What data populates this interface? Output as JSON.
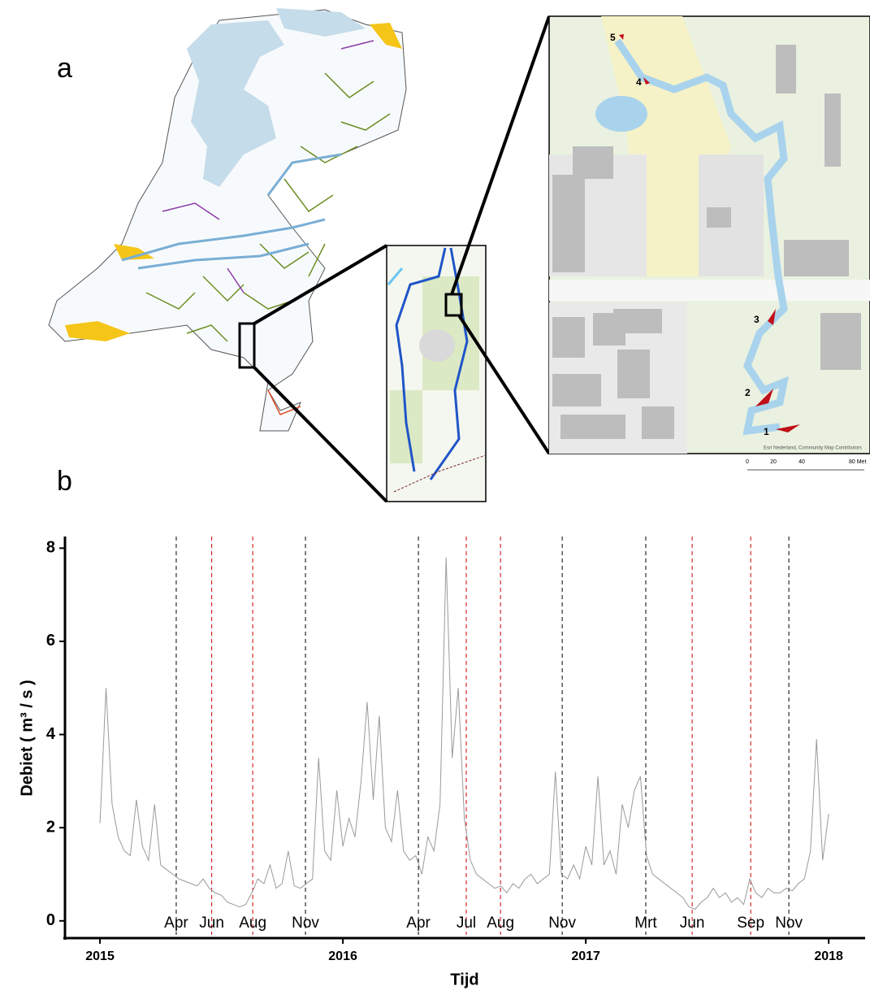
{
  "map": {
    "panel_a": "a",
    "panel_b": "b",
    "sites": [
      "5",
      "4",
      "3",
      "2",
      "1"
    ],
    "scale_labels": [
      "0",
      "20",
      "40",
      "80 Met"
    ],
    "attribution": "Esri Nederland, Community Map Contributors"
  },
  "chart_data": {
    "type": "line",
    "x": [
      2015,
      2015.025,
      2015.05,
      2015.075,
      2015.1,
      2015.125,
      2015.15,
      2015.175,
      2015.2,
      2015.225,
      2015.25,
      2015.275,
      2015.3,
      2015.325,
      2015.35,
      2015.375,
      2015.4,
      2015.425,
      2015.45,
      2015.475,
      2015.5,
      2015.525,
      2015.55,
      2015.575,
      2015.6,
      2015.625,
      2015.65,
      2015.675,
      2015.7,
      2015.725,
      2015.75,
      2015.775,
      2015.8,
      2015.825,
      2015.85,
      2015.875,
      2015.9,
      2015.925,
      2015.95,
      2015.975,
      2016,
      2016.025,
      2016.05,
      2016.075,
      2016.1,
      2016.125,
      2016.15,
      2016.175,
      2016.2,
      2016.225,
      2016.25,
      2016.275,
      2016.3,
      2016.325,
      2016.35,
      2016.375,
      2016.4,
      2016.425,
      2016.45,
      2016.475,
      2016.5,
      2016.525,
      2016.55,
      2016.575,
      2016.6,
      2016.625,
      2016.65,
      2016.675,
      2016.7,
      2016.725,
      2016.75,
      2016.775,
      2016.8,
      2016.825,
      2016.85,
      2016.875,
      2016.9,
      2016.925,
      2016.95,
      2016.975,
      2017,
      2017.025,
      2017.05,
      2017.075,
      2017.1,
      2017.125,
      2017.15,
      2017.175,
      2017.2,
      2017.225,
      2017.25,
      2017.275,
      2017.3,
      2017.325,
      2017.35,
      2017.375,
      2017.4,
      2017.425,
      2017.45,
      2017.475,
      2017.5,
      2017.525,
      2017.55,
      2017.575,
      2017.6,
      2017.625,
      2017.65,
      2017.675,
      2017.7,
      2017.725,
      2017.75,
      2017.775,
      2017.8,
      2017.825,
      2017.85,
      2017.875,
      2017.9,
      2017.925,
      2017.95,
      2017.975,
      2018
    ],
    "values": [
      2.1,
      5.0,
      2.5,
      1.8,
      1.5,
      1.4,
      2.6,
      1.6,
      1.3,
      2.5,
      1.2,
      1.1,
      1.0,
      0.9,
      0.85,
      0.8,
      0.75,
      0.9,
      0.7,
      0.6,
      0.55,
      0.4,
      0.35,
      0.3,
      0.35,
      0.6,
      0.9,
      0.8,
      1.2,
      0.7,
      0.8,
      1.5,
      0.75,
      0.7,
      0.8,
      0.9,
      3.5,
      1.5,
      1.3,
      2.8,
      1.6,
      2.2,
      1.8,
      3.0,
      4.7,
      2.6,
      4.4,
      2.0,
      1.7,
      2.8,
      1.5,
      1.3,
      1.4,
      1.0,
      1.8,
      1.5,
      2.5,
      7.8,
      3.5,
      5.0,
      2.2,
      1.3,
      1.0,
      0.9,
      0.8,
      0.7,
      0.75,
      0.6,
      0.8,
      0.7,
      0.9,
      1.0,
      0.8,
      0.9,
      1.0,
      3.2,
      1.0,
      0.9,
      1.2,
      0.9,
      1.6,
      1.2,
      3.1,
      1.2,
      1.5,
      1.0,
      2.5,
      2.0,
      2.8,
      3.1,
      1.4,
      1.0,
      0.9,
      0.8,
      0.7,
      0.6,
      0.5,
      0.3,
      0.25,
      0.4,
      0.5,
      0.7,
      0.5,
      0.6,
      0.4,
      0.5,
      0.35,
      0.9,
      0.6,
      0.5,
      0.7,
      0.6,
      0.6,
      0.7,
      0.65,
      0.8,
      0.9,
      1.5,
      3.9,
      1.3,
      2.3
    ],
    "color": "#9a9a9a",
    "xlim": [
      2014.856,
      2018.15
    ],
    "ylim": [
      -0.3,
      8.25
    ],
    "xticks": [
      2015,
      2016,
      2017,
      2018
    ],
    "yticks": [
      0,
      2,
      4,
      6,
      8
    ],
    "xlabel": "Tijd",
    "ylabel": "Debiet ( m³ / s )",
    "vlines": [
      {
        "x": 2015.314,
        "label": "Apr",
        "color": "#000000"
      },
      {
        "x": 2015.46,
        "label": "Jun",
        "color": "#d00000"
      },
      {
        "x": 2015.629,
        "label": "Aug",
        "color": "#d00000"
      },
      {
        "x": 2015.846,
        "label": "Nov",
        "color": "#000000"
      },
      {
        "x": 2016.311,
        "label": "Apr",
        "color": "#000000"
      },
      {
        "x": 2016.508,
        "label": "Jul",
        "color": "#d00000"
      },
      {
        "x": 2016.649,
        "label": "Aug",
        "color": "#d00000"
      },
      {
        "x": 2016.903,
        "label": "Nov",
        "color": "#000000"
      },
      {
        "x": 2017.247,
        "label": "Mrt",
        "color": "#000000"
      },
      {
        "x": 2017.438,
        "label": "Jun",
        "color": "#d00000"
      },
      {
        "x": 2017.679,
        "label": "Sep",
        "color": "#d00000"
      },
      {
        "x": 2017.836,
        "label": "Nov",
        "color": "#000000"
      }
    ]
  }
}
